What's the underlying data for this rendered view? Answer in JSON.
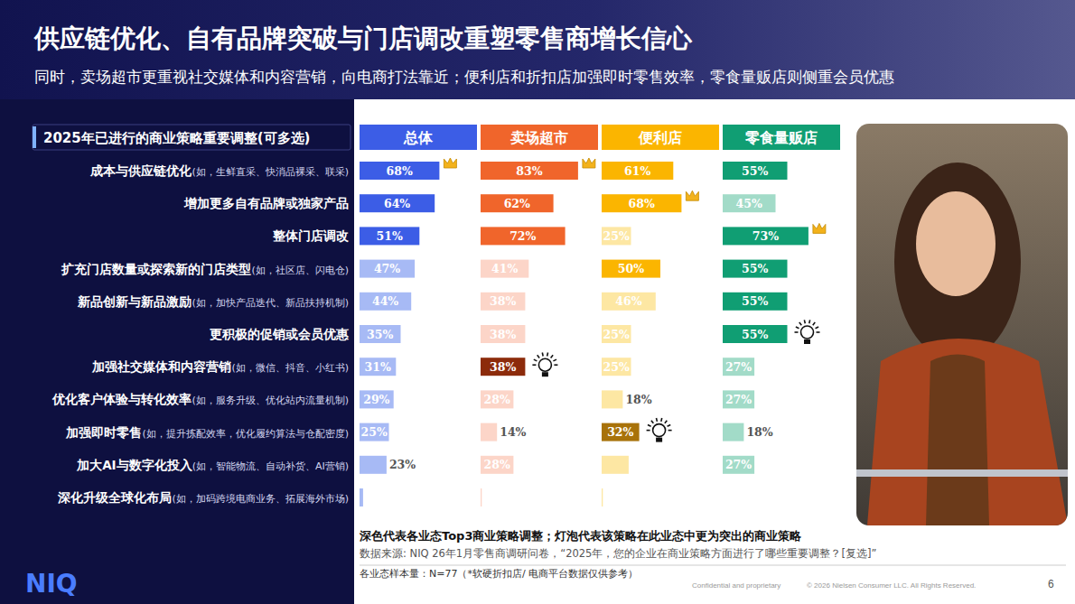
{
  "header": {
    "title": "供应链优化、自有品牌突破与门店调改重塑零售商增长信心",
    "subtitle": "同时，卖场超市更重视社交媒体和内容营销，向电商打法靠近；便利店和折扣店加强即时零售效率，零食量贩店则侧重会员优惠"
  },
  "chart_data": {
    "type": "bar",
    "orientation": "horizontal",
    "data_labels": true,
    "tick_labels": false,
    "grid": false,
    "title": "2025年已进行的商业策略重要调整(可多选)",
    "categories": [
      "成本与供应链优化(如，生鲜直采、快消品裸采、联采)",
      "增加更多自有品牌或独家产品",
      "整体门店调改",
      "扩充门店数量或探索新的门店类型(如，社区店、闪电仓)",
      "新品创新与新品激励(如，加快产品迭代、新品扶持机制)",
      "更积极的促销或会员优惠",
      "加强社交媒体和内容营销(如，微信、抖音、小红书)",
      "优化客户体验与转化效率(如，服务升级、优化站内流量机制)",
      "加强即时零售(如，提升拣配效率，优化履约算法与仓配密度)",
      "加大AI与数字化投入(如，智能物流、自动补货、AI营销)",
      "深化升级全球化布局(如，加码跨境电商业务、拓展海外市场)"
    ],
    "xlim": [
      0,
      100
    ],
    "xticks": [],
    "series": [
      {
        "name": "总体",
        "color": "#3c5de6",
        "values": [
          68,
          64,
          51,
          47,
          44,
          35,
          31,
          29,
          25,
          23,
          3
        ],
        "value_labels": [
          "68%",
          "64%",
          "51%",
          "47%",
          "44%",
          "35%",
          "31%",
          "29%",
          "25%",
          "23%",
          null
        ],
        "colors": [
          "#3c5de6",
          "#3c5de6",
          "#3c5de6",
          "#a7baf5",
          "#a7baf5",
          "#a7baf5",
          "#a7baf5",
          "#a7baf5",
          "#a7baf5",
          "#a7baf5",
          "#a7baf5"
        ]
      },
      {
        "name": "卖场超市",
        "color": "#f0652b",
        "values": [
          83,
          62,
          72,
          41,
          38,
          38,
          38,
          28,
          14,
          28,
          1
        ],
        "value_labels": [
          "83%",
          "62%",
          "72%",
          "41%",
          "38%",
          "38%",
          "38%",
          "28%",
          "14%",
          "28%",
          null
        ],
        "colors": [
          "#f0652b",
          "#f0652b",
          "#f0652b",
          "#fcd5c8",
          "#fcd5c8",
          "#fcd5c8",
          "#8c2b0b",
          "#fcd5c8",
          "#fcd5c8",
          "#fcd5c8",
          "#fcd5c8"
        ]
      },
      {
        "name": "便利店",
        "color": "#fbb500",
        "values": [
          61,
          68,
          25,
          50,
          46,
          25,
          25,
          18,
          32,
          23,
          1
        ],
        "value_labels": [
          "61%",
          "68%",
          "25%",
          "50%",
          "46%",
          "25%",
          "25%",
          "18%",
          "32%",
          null,
          null
        ],
        "colors": [
          "#fbb500",
          "#fbb500",
          "#fde7a3",
          "#fbb500",
          "#fde7a3",
          "#fde7a3",
          "#fde7a3",
          "#fde7a3",
          "#a8720a",
          "#fde7a3",
          "#fde7a3"
        ]
      },
      {
        "name": "零食量贩店",
        "color": "#109e73",
        "values": [
          55,
          45,
          73,
          55,
          55,
          55,
          27,
          27,
          18,
          27,
          0
        ],
        "value_labels": [
          "55%",
          "45%",
          "73%",
          "55%",
          "55%",
          "55%",
          "27%",
          "27%",
          "18%",
          "27%",
          null
        ],
        "colors": [
          "#109e73",
          "#a2dbc8",
          "#109e73",
          "#109e73",
          "#109e73",
          "#109e73",
          "#a2dbc8",
          "#a2dbc8",
          "#a2dbc8",
          "#a2dbc8",
          "#a2dbc8"
        ]
      }
    ]
  },
  "footer": {
    "legend_note": "深色代表各业态Top3商业策略调整；灯泡代表该策略在此业态中更为突出的商业策略",
    "source": "数据来源: NIQ 26年1月零售商调研问卷，“2025年，您的企业在商业策略方面进行了哪些重要调整？[复选]”",
    "sample": "各业态样本量：N=77（*软硬折扣店/ 电商平台数据仅供参考）",
    "confidential": "Confidential and proprietary",
    "copyright": "© 2026 Nielsen Consumer LLC. All Rights Reserved.",
    "page": "6",
    "logo": "NIQ"
  }
}
